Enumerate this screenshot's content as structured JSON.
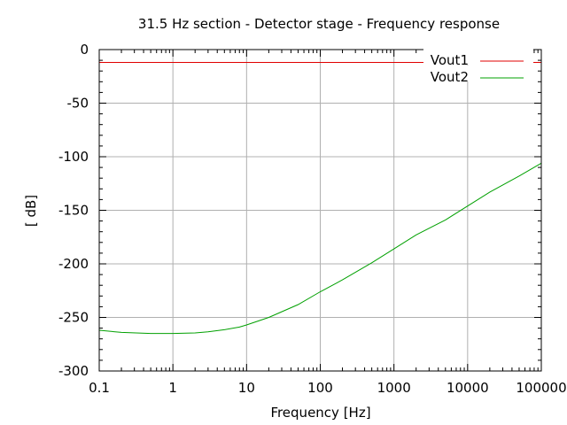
{
  "chart_data": {
    "type": "line",
    "title": "31.5 Hz section - Detector stage - Frequency response",
    "xlabel": "Frequency [Hz]",
    "ylabel": "[ dB]",
    "xscale": "log",
    "xlim": [
      0.1,
      100000
    ],
    "ylim": [
      -300,
      0
    ],
    "grid": true,
    "legend_position": "top-right",
    "x_ticks": [
      {
        "value": 0.1,
        "label": "0.1"
      },
      {
        "value": 1,
        "label": "1"
      },
      {
        "value": 10,
        "label": "10"
      },
      {
        "value": 100,
        "label": "100"
      },
      {
        "value": 1000,
        "label": "1000"
      },
      {
        "value": 10000,
        "label": "10000"
      },
      {
        "value": 100000,
        "label": "100000"
      }
    ],
    "y_ticks": [
      {
        "value": 0,
        "label": "0"
      },
      {
        "value": -50,
        "label": "-50"
      },
      {
        "value": -100,
        "label": "-100"
      },
      {
        "value": -150,
        "label": "-150"
      },
      {
        "value": -200,
        "label": "-200"
      },
      {
        "value": -250,
        "label": "-250"
      },
      {
        "value": -300,
        "label": "-300"
      }
    ],
    "series": [
      {
        "name": "Vout1",
        "color": "#e00000",
        "x": [
          0.1,
          100000
        ],
        "y": [
          -12,
          -12
        ]
      },
      {
        "name": "Vout2",
        "color": "#00a000",
        "x": [
          0.1,
          0.2,
          0.5,
          1,
          2,
          3,
          5,
          8,
          10,
          20,
          50,
          100,
          200,
          500,
          1000,
          2000,
          5000,
          10000,
          20000,
          50000,
          100000
        ],
        "y": [
          -262,
          -264,
          -265,
          -265,
          -264.5,
          -263.5,
          -261.5,
          -259,
          -257,
          -250,
          -238,
          -226,
          -215,
          -199,
          -186,
          -173,
          -159,
          -146,
          -133,
          -118,
          -106
        ]
      }
    ]
  }
}
